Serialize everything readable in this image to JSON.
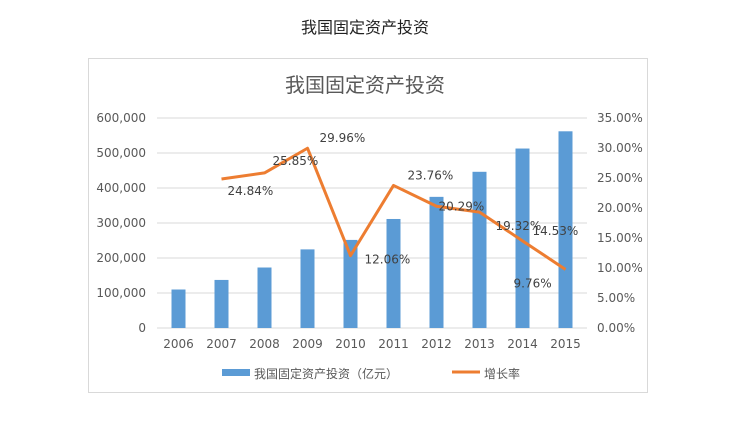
{
  "page_title": "我国固定资产投资",
  "chart_data": {
    "type": "bar+line",
    "title": "我国固定资产投资",
    "categories": [
      "2006",
      "2007",
      "2008",
      "2009",
      "2010",
      "2011",
      "2012",
      "2013",
      "2014",
      "2015"
    ],
    "series": [
      {
        "name": "我国固定资产投资（亿元）",
        "type": "bar",
        "axis": "left",
        "color": "#5b9bd5",
        "values": [
          109998,
          137324,
          172828,
          224599,
          251684,
          311485,
          374695,
          446294,
          512761,
          562000
        ]
      },
      {
        "name": "增长率",
        "type": "line",
        "axis": "right",
        "color": "#ed7d31",
        "values": [
          null,
          24.84,
          25.85,
          29.96,
          12.06,
          23.76,
          20.29,
          19.32,
          14.53,
          9.76
        ],
        "labels": [
          "",
          "24.84%",
          "25.85%",
          "29.96%",
          "12.06%",
          "23.76%",
          "20.29%",
          "19.32%",
          "14.53%",
          "9.76%"
        ]
      }
    ],
    "y_left": {
      "ylim": [
        0,
        600000
      ],
      "ticks": [
        "0",
        "100,000",
        "200,000",
        "300,000",
        "400,000",
        "500,000",
        "600,000"
      ]
    },
    "y_right": {
      "ylim": [
        0,
        35
      ],
      "ticks": [
        "0.00%",
        "5.00%",
        "10.00%",
        "15.00%",
        "20.00%",
        "25.00%",
        "30.00%",
        "35.00%"
      ]
    },
    "grid": true,
    "legend": "bottom"
  }
}
